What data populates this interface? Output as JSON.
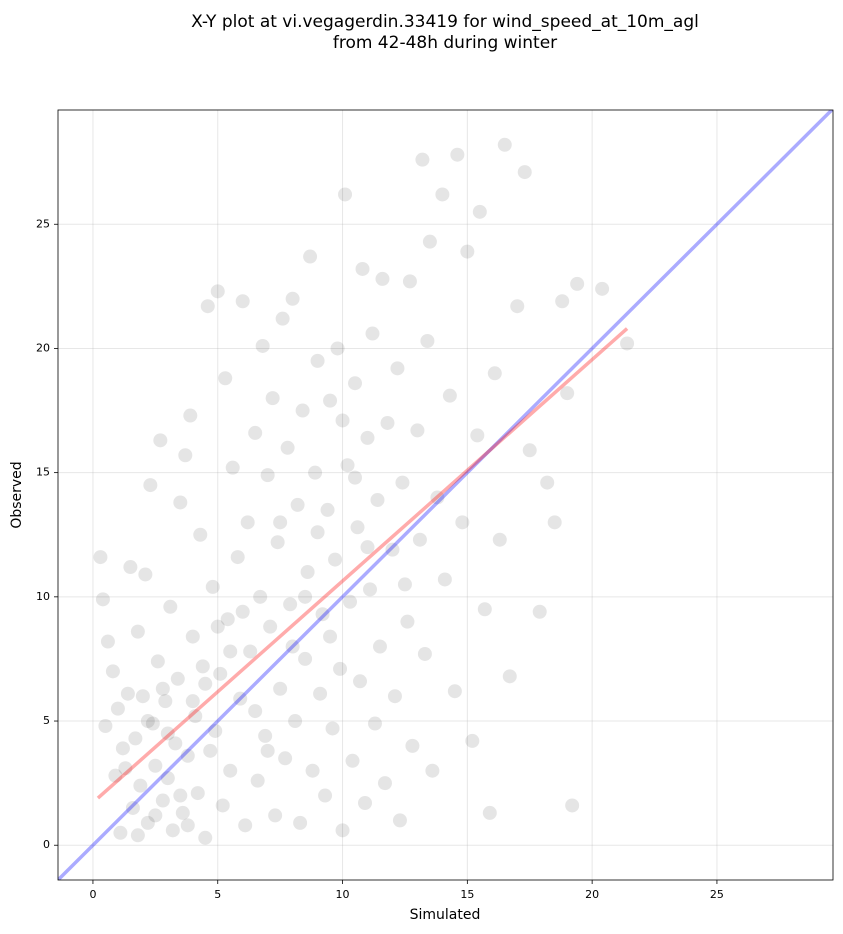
{
  "chart_data": {
    "type": "scatter",
    "title": [
      "X-Y plot at vi.vegagerdin.33419 for wind_speed_at_10m_agl",
      "from 42-48h during winter"
    ],
    "x_label": "Simulated",
    "y_label": "Observed",
    "xlim": [
      -1.4,
      29.65
    ],
    "ylim": [
      -1.4,
      29.6
    ],
    "xticks": [
      0,
      5,
      10,
      15,
      20,
      25
    ],
    "yticks": [
      0,
      5,
      10,
      15,
      20,
      25
    ],
    "grid": true,
    "series": [
      {
        "type": "scatter",
        "color": "#000000",
        "x": [
          0.3,
          0.4,
          0.5,
          0.6,
          0.8,
          0.9,
          1.0,
          1.1,
          1.2,
          1.4,
          1.5,
          1.6,
          1.7,
          1.8,
          1.9,
          2.0,
          2.1,
          2.2,
          2.3,
          2.4,
          2.5,
          2.6,
          2.7,
          2.8,
          2.9,
          3.0,
          3.1,
          3.2,
          3.3,
          3.4,
          3.5,
          3.6,
          3.7,
          3.8,
          3.9,
          4.0,
          4.1,
          4.2,
          4.3,
          4.4,
          4.5,
          4.6,
          4.8,
          4.9,
          5.0,
          5.1,
          5.2,
          5.3,
          5.4,
          5.5,
          5.6,
          5.8,
          5.9,
          6.0,
          6.1,
          6.2,
          6.3,
          6.5,
          6.6,
          6.7,
          6.8,
          6.9,
          7.0,
          7.1,
          7.2,
          7.3,
          7.4,
          7.5,
          7.6,
          7.7,
          7.8,
          7.9,
          8.0,
          8.1,
          8.2,
          8.3,
          8.4,
          8.5,
          8.6,
          8.7,
          8.8,
          8.9,
          9.0,
          9.1,
          9.2,
          9.3,
          9.4,
          9.5,
          9.6,
          9.7,
          9.8,
          9.9,
          10.0,
          10.1,
          10.2,
          10.3,
          10.4,
          10.5,
          10.6,
          10.7,
          10.8,
          10.9,
          11.0,
          11.1,
          11.2,
          11.3,
          11.4,
          11.5,
          11.6,
          11.7,
          11.8,
          12.0,
          12.1,
          12.2,
          12.3,
          12.4,
          12.6,
          12.7,
          12.8,
          13.0,
          13.1,
          13.2,
          13.3,
          13.4,
          13.5,
          13.6,
          13.8,
          14.0,
          14.1,
          14.3,
          14.5,
          14.6,
          14.8,
          15.0,
          15.2,
          15.4,
          15.5,
          15.7,
          15.9,
          16.1,
          16.3,
          16.5,
          16.7,
          17.0,
          17.3,
          17.5,
          17.9,
          18.2,
          18.5,
          18.8,
          19.0,
          19.2,
          19.4,
          20.4,
          21.4,
          1.3,
          2.5,
          3.0,
          3.5,
          4.0,
          2.2,
          3.8,
          4.7,
          1.8,
          2.8,
          5.5,
          6.5,
          7.0,
          8.5,
          9.5,
          10.5,
          9.0,
          8.0,
          6.0,
          10.0,
          11.0,
          12.5,
          7.5,
          5.0,
          4.5
        ],
        "values": [
          11.6,
          9.9,
          4.8,
          8.2,
          7.0,
          2.8,
          5.5,
          0.5,
          3.9,
          6.1,
          11.2,
          1.5,
          4.3,
          8.6,
          2.4,
          6.0,
          10.9,
          0.9,
          14.5,
          4.9,
          3.2,
          7.4,
          16.3,
          1.8,
          5.8,
          2.7,
          9.6,
          0.6,
          4.1,
          6.7,
          13.8,
          1.3,
          15.7,
          3.6,
          17.3,
          8.4,
          5.2,
          2.1,
          12.5,
          7.2,
          0.3,
          21.7,
          10.4,
          4.6,
          22.3,
          6.9,
          1.6,
          18.8,
          9.1,
          3.0,
          15.2,
          11.6,
          5.9,
          21.9,
          0.8,
          13.0,
          7.8,
          16.6,
          2.6,
          10.0,
          20.1,
          4.4,
          14.9,
          8.8,
          18.0,
          1.2,
          12.2,
          6.3,
          21.2,
          3.5,
          16.0,
          9.7,
          22.0,
          5.0,
          13.7,
          0.9,
          17.5,
          7.5,
          11.0,
          23.7,
          3.0,
          15.0,
          19.5,
          6.1,
          9.3,
          2.0,
          13.5,
          17.9,
          4.7,
          11.5,
          20.0,
          7.1,
          0.6,
          26.2,
          15.3,
          9.8,
          3.4,
          18.6,
          12.8,
          6.6,
          23.2,
          1.7,
          16.4,
          10.3,
          20.6,
          4.9,
          13.9,
          8.0,
          22.8,
          2.5,
          17.0,
          11.9,
          6.0,
          19.2,
          1.0,
          14.6,
          9.0,
          22.7,
          4.0,
          16.7,
          12.3,
          27.6,
          7.7,
          20.3,
          24.3,
          3.0,
          14.0,
          26.2,
          10.7,
          18.1,
          6.2,
          27.8,
          13.0,
          23.9,
          4.2,
          16.5,
          25.5,
          9.5,
          1.3,
          19.0,
          12.3,
          28.2,
          6.8,
          21.7,
          27.1,
          15.9,
          9.4,
          14.6,
          13.0,
          21.9,
          18.2,
          1.6,
          22.6,
          22.4,
          20.2,
          3.1,
          1.2,
          4.5,
          2.0,
          5.8,
          5.0,
          0.8,
          3.8,
          0.4,
          6.3,
          7.8,
          5.4,
          3.8,
          10.0,
          8.4,
          14.8,
          12.6,
          8.0,
          9.4,
          17.1,
          12.0,
          10.5,
          13.0,
          8.8,
          6.5
        ]
      },
      {
        "type": "line",
        "color": "#0000ff",
        "x": [
          -1.5,
          30
        ],
        "values": [
          -1.5,
          30
        ]
      },
      {
        "type": "line",
        "color": "#ff0000",
        "x": [
          0.2,
          21.4
        ],
        "values": [
          1.9,
          20.8
        ]
      }
    ]
  }
}
